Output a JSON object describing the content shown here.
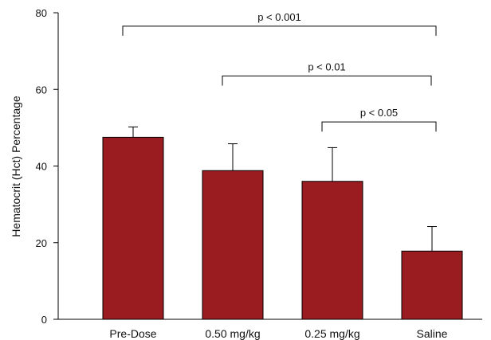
{
  "chart_data": {
    "type": "bar",
    "title": "",
    "xlabel": "",
    "ylabel": "Hematocrit (Hct) Percentage",
    "ylim": [
      0,
      80
    ],
    "yticks": [
      0,
      20,
      40,
      60,
      80
    ],
    "grid": false,
    "legend": "none",
    "bar_color": "#9b1c20",
    "categories": [
      "Pre-Dose",
      "0.50 mg/kg",
      "0.25 mg/kg",
      "Saline"
    ],
    "series": [
      {
        "values": [
          47.5,
          38.8,
          36.0,
          17.8
        ],
        "error_upper": [
          50.2,
          45.8,
          44.8,
          24.2
        ]
      }
    ],
    "annotations": [
      {
        "text": "p < 0.001",
        "from": 0,
        "to": 3,
        "level": 76.5,
        "drop": 2.5
      },
      {
        "text": "p < 0.01",
        "from": 1,
        "to": 3,
        "level": 63.5,
        "drop": 2.5
      },
      {
        "text": "p < 0.05",
        "from": 2,
        "to": 3,
        "level": 51.5,
        "drop": 2.5
      }
    ]
  }
}
